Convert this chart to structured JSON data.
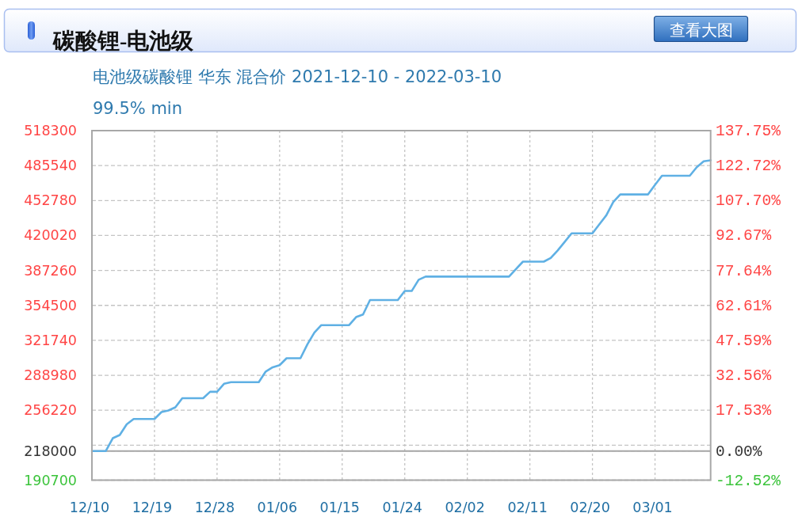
{
  "chart_data": {
    "type": "line",
    "title": "碳酸锂-电池级",
    "subtitle": "电池级碳酸锂 华东 混合价 2021-12-10 - 2022-03-10",
    "annotations": [
      "99.5% min",
      "查看大图"
    ],
    "xlim": [
      "2021-12-10",
      "2022-03-09"
    ],
    "xticks": [
      {
        "value": "2021-12-10",
        "label": "12/10"
      },
      {
        "value": "2021-12-19",
        "label": "12/19"
      },
      {
        "value": "2021-12-28",
        "label": "12/28"
      },
      {
        "value": "2022-01-06",
        "label": "01/06"
      },
      {
        "value": "2022-01-15",
        "label": "01/15"
      },
      {
        "value": "2022-01-24",
        "label": "01/24"
      },
      {
        "value": "2022-02-02",
        "label": "02/02"
      },
      {
        "value": "2022-02-11",
        "label": "02/11"
      },
      {
        "value": "2022-02-20",
        "label": "02/20"
      },
      {
        "value": "2022-03-01",
        "label": "03/01"
      }
    ],
    "ylim": [
      190700,
      518300
    ],
    "yticks": [
      190700,
      218000,
      {
        "value": 223460,
        "label": null
      },
      256220,
      288980,
      321740,
      354500,
      387260,
      420020,
      452780,
      485540,
      518300
    ],
    "y2lim": [
      -12.52,
      137.75
    ],
    "y2ticks": [
      {
        "value": -12.52,
        "label": "-12.52%"
      },
      {
        "value": 0,
        "label": "0.00%"
      },
      {
        "value": 17.53,
        "label": "17.53%"
      },
      {
        "value": 32.56,
        "label": "32.56%"
      },
      {
        "value": 47.59,
        "label": "47.59%"
      },
      {
        "value": 62.61,
        "label": "62.61%"
      },
      {
        "value": 77.64,
        "label": "77.64%"
      },
      {
        "value": 92.67,
        "label": "92.67%"
      },
      {
        "value": 107.7,
        "label": "107.70%"
      },
      {
        "value": 122.72,
        "label": "122.72%"
      },
      {
        "value": 137.75,
        "label": "137.75%"
      }
    ],
    "grid": true,
    "ref_lines": [
      {
        "axis": "y",
        "value": 218000,
        "color": "#a6a6a6"
      }
    ],
    "series": [
      {
        "color": "#5fb0e4",
        "x": [
          "2021-12-10",
          "2021-12-12",
          "2021-12-13",
          "2021-12-14",
          "2021-12-15",
          "2021-12-16",
          "2021-12-19",
          "2021-12-20",
          "2021-12-21",
          "2021-12-22",
          "2021-12-23",
          "2021-12-26",
          "2021-12-27",
          "2021-12-28",
          "2021-12-29",
          "2021-12-30",
          "2022-01-03",
          "2022-01-04",
          "2022-01-05",
          "2022-01-06",
          "2022-01-07",
          "2022-01-09",
          "2022-01-10",
          "2022-01-11",
          "2022-01-12",
          "2022-01-16",
          "2022-01-17",
          "2022-01-18",
          "2022-01-19",
          "2022-01-23",
          "2022-01-24",
          "2022-01-25",
          "2022-01-26",
          "2022-01-27",
          "2022-02-08",
          "2022-02-09",
          "2022-02-10",
          "2022-02-13",
          "2022-02-14",
          "2022-02-15",
          "2022-02-16",
          "2022-02-17",
          "2022-02-20",
          "2022-02-21",
          "2022-02-22",
          "2022-02-23",
          "2022-02-24",
          "2022-02-28",
          "2022-03-01",
          "2022-03-02",
          "2022-03-06",
          "2022-03-07",
          "2022-03-08",
          "2022-03-09"
        ],
        "values": [
          218000,
          218000,
          230000,
          233000,
          243000,
          248000,
          248000,
          254500,
          256000,
          259000,
          267500,
          267500,
          273500,
          273500,
          281000,
          282500,
          282500,
          292500,
          296500,
          298500,
          305000,
          305000,
          318000,
          329000,
          336000,
          336000,
          343500,
          346000,
          359500,
          359500,
          368000,
          368000,
          378500,
          381500,
          381500,
          388500,
          395500,
          395500,
          399000,
          406000,
          414000,
          422000,
          422000,
          430500,
          439000,
          451500,
          458500,
          458500,
          467500,
          476000,
          476000,
          484000,
          489500,
          490500
        ]
      }
    ]
  }
}
